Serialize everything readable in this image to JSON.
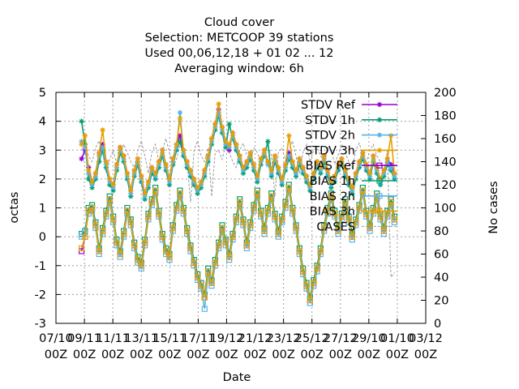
{
  "chart_data": {
    "type": "line",
    "title_lines": [
      "Cloud cover",
      "Selection: METCOOP     39 stations",
      "Used  00,06,12,18 + 01 02 ... 12",
      "Averaging window:  6h"
    ],
    "xlabel": "Date",
    "ylabel": "octas",
    "y2label": "No cases",
    "ylim": [
      -3,
      5
    ],
    "y2lim": [
      0,
      200
    ],
    "y_ticks": [
      "-3",
      "-2",
      "-1",
      "0",
      "1",
      "2",
      "3",
      "4",
      "5"
    ],
    "y2_ticks": [
      "0",
      "20",
      "40",
      "60",
      "80",
      "100",
      "120",
      "140",
      "160",
      "180",
      "200"
    ],
    "x_ticks": [
      {
        "top": "07/10",
        "bottom": "00Z"
      },
      {
        "top": "09/11",
        "bottom": "00Z"
      },
      {
        "top": "11/11",
        "bottom": "00Z"
      },
      {
        "top": "13/11",
        "bottom": "00Z"
      },
      {
        "top": "15/11",
        "bottom": "00Z"
      },
      {
        "top": "17/11",
        "bottom": "00Z"
      },
      {
        "top": "19/12",
        "bottom": "00Z"
      },
      {
        "top": "21/12",
        "bottom": "00Z"
      },
      {
        "top": "23/12",
        "bottom": "00Z"
      },
      {
        "top": "25/12",
        "bottom": "00Z"
      },
      {
        "top": "27/12",
        "bottom": "00Z"
      },
      {
        "top": "29/10",
        "bottom": "00Z"
      },
      {
        "top": "01/10",
        "bottom": "00Z"
      },
      {
        "top": "03/12",
        "bottom": "00Z"
      }
    ],
    "grid": true,
    "legend_position": "top-right",
    "series": [
      {
        "name": "STDV Ref",
        "color": "#9400d3",
        "marker": "star",
        "values": [
          2.7,
          3.0,
          2.4,
          1.9,
          2.2,
          2.9,
          3.2,
          2.6,
          2.0,
          1.8,
          2.5,
          3.1,
          2.8,
          2.2,
          1.6,
          2.3,
          2.7,
          2.1,
          1.5,
          1.9,
          2.4,
          2.2,
          2.6,
          3.0,
          2.5,
          2.0,
          2.7,
          3.2,
          3.5,
          3.0,
          2.6,
          2.3,
          2.0,
          1.7,
          1.9,
          2.3,
          2.8,
          3.4,
          3.9,
          4.4,
          3.8,
          3.3,
          3.0,
          3.6,
          3.2,
          2.8,
          2.4,
          2.6,
          2.9,
          2.5,
          2.1,
          2.7,
          3.0,
          2.6,
          2.3,
          2.8,
          2.4,
          2.0,
          2.5,
          2.9,
          2.6,
          2.3,
          2.7,
          2.4,
          2.1,
          1.8,
          2.2,
          2.6,
          2.4,
          2.8,
          2.3,
          1.9,
          2.1,
          2.5,
          2.7,
          2.3,
          2.0,
          1.7,
          2.2,
          2.6,
          2.9,
          2.5,
          2.2,
          2.8,
          2.4,
          2.0,
          2.3,
          2.7,
          2.5,
          2.2
        ]
      },
      {
        "name": "STDV 1h",
        "color": "#009e73",
        "marker": "star",
        "values": [
          4.0,
          3.2,
          2.0,
          1.7,
          2.0,
          2.6,
          3.0,
          2.4,
          1.8,
          1.6,
          2.3,
          2.9,
          2.6,
          2.0,
          1.4,
          2.1,
          2.5,
          1.9,
          1.3,
          1.7,
          2.2,
          2.0,
          2.4,
          2.8,
          2.3,
          1.8,
          2.5,
          3.0,
          3.3,
          2.8,
          2.4,
          2.1,
          1.8,
          1.5,
          1.7,
          2.1,
          2.6,
          3.2,
          3.7,
          4.2,
          3.6,
          3.1,
          3.9,
          3.4,
          3.0,
          2.6,
          2.2,
          2.4,
          2.7,
          2.3,
          1.9,
          2.5,
          2.8,
          3.3,
          2.1,
          2.6,
          2.2,
          1.8,
          2.3,
          2.7,
          2.4,
          2.1,
          2.5,
          2.2,
          1.9,
          1.6,
          2.0,
          2.4,
          2.2,
          2.6,
          2.1,
          1.7,
          1.9,
          2.3,
          2.5,
          2.1,
          1.8,
          1.5,
          2.0,
          2.4,
          2.7,
          2.3,
          2.0,
          2.6,
          2.2,
          1.8,
          2.1,
          2.5,
          2.3,
          2.0
        ]
      },
      {
        "name": "STDV 2h",
        "color": "#56b4e9",
        "marker": "star",
        "values": [
          3.3,
          3.1,
          2.2,
          1.8,
          2.1,
          2.8,
          3.1,
          2.5,
          1.9,
          1.7,
          2.4,
          3.0,
          2.7,
          2.1,
          1.5,
          2.2,
          2.6,
          2.0,
          1.4,
          1.8,
          2.3,
          2.1,
          2.5,
          2.9,
          2.4,
          1.9,
          2.6,
          3.1,
          4.3,
          2.9,
          2.5,
          2.2,
          1.9,
          1.6,
          1.8,
          2.2,
          2.7,
          3.3,
          3.8,
          4.3,
          3.7,
          3.2,
          3.1,
          3.5,
          3.1,
          2.7,
          2.3,
          2.5,
          2.8,
          2.4,
          2.0,
          2.6,
          2.9,
          2.5,
          2.2,
          2.7,
          2.3,
          1.9,
          2.4,
          2.8,
          2.5,
          2.2,
          2.6,
          2.3,
          2.0,
          1.7,
          2.1,
          2.5,
          2.3,
          2.7,
          2.2,
          1.8,
          2.0,
          2.4,
          2.6,
          2.2,
          1.9,
          1.6,
          2.1,
          2.5,
          2.8,
          2.4,
          2.1,
          2.7,
          2.3,
          1.9,
          2.2,
          2.6,
          2.4,
          2.1
        ]
      },
      {
        "name": "STDV 3h",
        "color": "#e69f00",
        "marker": "star",
        "values": [
          3.2,
          3.5,
          2.3,
          1.9,
          2.2,
          2.9,
          3.7,
          2.6,
          2.0,
          1.8,
          2.5,
          3.1,
          2.8,
          2.2,
          1.6,
          2.3,
          2.7,
          2.1,
          1.5,
          1.9,
          2.4,
          2.2,
          2.6,
          3.0,
          2.5,
          2.0,
          2.7,
          3.2,
          4.1,
          3.0,
          2.6,
          2.3,
          2.0,
          1.7,
          1.9,
          2.3,
          2.8,
          3.4,
          3.9,
          4.6,
          3.8,
          3.3,
          3.2,
          3.6,
          3.2,
          2.8,
          2.4,
          2.6,
          2.9,
          2.5,
          2.1,
          2.7,
          3.0,
          2.6,
          2.3,
          2.8,
          2.4,
          2.0,
          2.5,
          3.5,
          2.6,
          2.3,
          2.7,
          2.4,
          2.1,
          1.8,
          2.2,
          2.6,
          2.4,
          2.8,
          2.3,
          1.9,
          2.1,
          2.5,
          2.7,
          2.3,
          2.0,
          1.7,
          2.2,
          2.6,
          2.9,
          2.5,
          2.2,
          2.8,
          2.4,
          2.0,
          2.3,
          2.7,
          3.5,
          2.2
        ]
      },
      {
        "name": "BIAS Ref",
        "color": "#9400d3",
        "marker": "square",
        "values": [
          -0.5,
          0.0,
          0.9,
          1.0,
          0.4,
          -0.5,
          0.2,
          0.8,
          1.3,
          0.6,
          -0.2,
          -0.6,
          0.1,
          0.9,
          0.5,
          -0.3,
          -0.8,
          -1.0,
          -0.2,
          0.7,
          1.2,
          1.6,
          0.8,
          0.0,
          -0.5,
          -0.7,
          0.3,
          1.0,
          1.5,
          0.9,
          0.2,
          -0.4,
          -0.9,
          -1.4,
          -1.7,
          -2.1,
          -1.2,
          -1.6,
          -0.9,
          -0.3,
          0.3,
          -0.2,
          -0.7,
          0.0,
          0.6,
          1.2,
          0.5,
          -0.3,
          0.4,
          1.0,
          1.5,
          0.8,
          0.2,
          0.9,
          1.4,
          0.7,
          0.1,
          0.6,
          1.1,
          1.7,
          0.9,
          0.3,
          -0.5,
          -1.2,
          -1.7,
          -2.2,
          -1.6,
          -1.1,
          -0.5,
          0.3,
          0.9,
          1.4,
          0.8,
          0.2,
          0.7,
          1.2,
          0.6,
          0.0,
          0.5,
          1.0,
          1.6,
          0.8,
          0.3,
          0.9,
          1.4,
          0.7,
          0.2,
          0.8,
          1.2,
          0.6
        ]
      },
      {
        "name": "BIAS 1h",
        "color": "#009e73",
        "marker": "square",
        "values": [
          0.1,
          0.2,
          1.0,
          1.1,
          0.5,
          -0.4,
          0.3,
          0.9,
          1.4,
          0.7,
          -0.1,
          -0.5,
          0.2,
          1.0,
          0.6,
          -0.2,
          -0.7,
          -0.9,
          -0.1,
          0.8,
          1.3,
          1.7,
          0.9,
          0.1,
          -0.4,
          -0.6,
          0.4,
          1.1,
          1.6,
          1.0,
          0.3,
          -0.3,
          -0.8,
          -1.3,
          -1.6,
          -2.0,
          -1.1,
          -1.5,
          -0.8,
          -0.2,
          0.4,
          -0.1,
          -0.6,
          0.1,
          0.7,
          1.3,
          0.6,
          -0.2,
          0.5,
          1.1,
          1.6,
          0.9,
          0.3,
          1.0,
          1.5,
          0.8,
          0.2,
          0.7,
          1.2,
          1.8,
          1.0,
          0.4,
          -0.4,
          -1.1,
          -1.6,
          -2.1,
          -1.5,
          -1.0,
          -0.4,
          0.4,
          1.0,
          1.5,
          0.9,
          0.3,
          0.8,
          1.3,
          0.7,
          0.1,
          0.6,
          1.1,
          1.7,
          0.9,
          0.4,
          1.0,
          1.5,
          0.8,
          0.3,
          0.9,
          1.3,
          0.7
        ]
      },
      {
        "name": "BIAS 2h",
        "color": "#56b4e9",
        "marker": "square",
        "values": [
          0.0,
          0.1,
          0.8,
          0.9,
          0.3,
          -0.6,
          0.1,
          0.7,
          1.2,
          0.5,
          -0.3,
          -0.7,
          0.0,
          0.8,
          0.4,
          -0.4,
          -0.9,
          -1.1,
          -0.3,
          0.6,
          1.1,
          1.5,
          0.7,
          -0.1,
          -0.6,
          -0.8,
          0.2,
          0.9,
          1.4,
          0.8,
          0.1,
          -0.5,
          -1.0,
          -1.5,
          -1.8,
          -2.5,
          -1.3,
          -1.7,
          -1.0,
          -0.4,
          0.2,
          -0.3,
          -0.8,
          -0.1,
          0.5,
          1.1,
          0.4,
          -0.4,
          0.3,
          0.9,
          1.4,
          0.7,
          0.1,
          0.8,
          1.3,
          0.6,
          0.0,
          0.5,
          1.0,
          1.6,
          0.8,
          0.2,
          -0.6,
          -1.3,
          -1.8,
          -2.3,
          -1.7,
          -1.2,
          -0.6,
          0.2,
          0.8,
          1.3,
          0.7,
          0.1,
          0.6,
          1.1,
          0.5,
          -0.1,
          0.4,
          0.9,
          1.5,
          0.7,
          0.2,
          0.8,
          1.3,
          0.6,
          0.1,
          0.7,
          1.1,
          0.5
        ]
      },
      {
        "name": "BIAS 3h",
        "color": "#e69f00",
        "marker": "square",
        "values": [
          -0.4,
          0.0,
          0.9,
          1.0,
          0.4,
          -0.5,
          0.2,
          0.8,
          1.3,
          0.6,
          -0.2,
          -0.6,
          0.1,
          0.9,
          0.5,
          -0.3,
          -0.8,
          -1.0,
          -0.2,
          0.7,
          1.2,
          1.6,
          0.8,
          0.0,
          -0.5,
          -0.7,
          0.3,
          1.0,
          1.5,
          0.9,
          0.2,
          -0.4,
          -0.9,
          -1.4,
          -1.7,
          -2.1,
          -1.2,
          -1.6,
          -0.9,
          -0.3,
          0.3,
          -0.2,
          -0.7,
          0.0,
          0.6,
          1.2,
          0.5,
          -0.3,
          0.4,
          1.0,
          1.5,
          0.8,
          0.2,
          0.9,
          1.4,
          0.7,
          0.1,
          0.6,
          1.1,
          1.7,
          0.9,
          0.3,
          -0.5,
          -1.2,
          -1.7,
          -2.2,
          -1.6,
          -1.1,
          -0.5,
          0.3,
          0.9,
          1.4,
          0.8,
          0.2,
          0.7,
          1.2,
          0.6,
          0.0,
          0.5,
          1.0,
          1.6,
          0.8,
          0.3,
          0.9,
          1.4,
          0.7,
          0.2,
          0.8,
          1.2,
          0.6
        ]
      },
      {
        "name": "CASES",
        "color": "#999999",
        "marker": "none",
        "axis": "y2",
        "values": [
          150,
          155,
          145,
          140,
          152,
          158,
          148,
          130,
          142,
          150,
          138,
          146,
          155,
          148,
          140,
          135,
          150,
          158,
          145,
          130,
          148,
          155,
          140,
          150,
          160,
          148,
          135,
          142,
          155,
          148,
          140,
          105,
          150,
          158,
          145,
          140,
          152,
          110,
          148,
          150,
          142,
          155,
          148,
          140,
          135,
          150,
          156,
          145,
          140,
          152,
          148,
          140,
          150,
          155,
          145,
          110,
          148,
          152,
          140,
          150,
          158,
          145,
          130,
          148,
          155,
          140,
          150,
          152,
          145,
          140,
          152,
          150,
          138,
          146,
          155,
          148,
          140,
          135,
          150,
          156,
          145,
          140,
          150,
          155,
          145,
          140,
          130,
          150,
          40,
          44
        ]
      }
    ]
  }
}
